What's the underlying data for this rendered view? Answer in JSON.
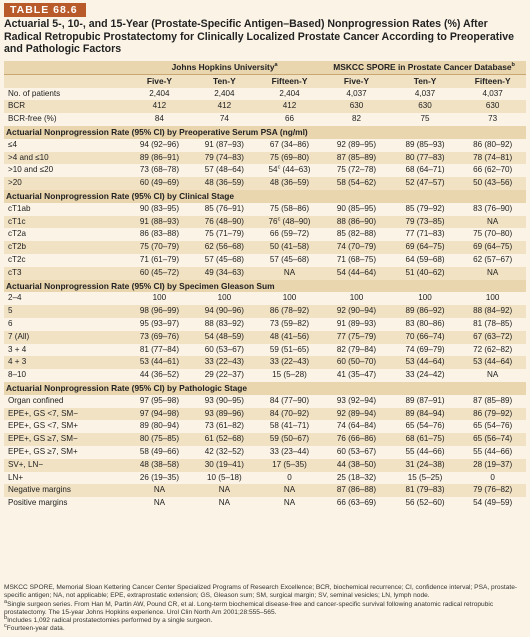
{
  "label": "TABLE 68.6",
  "title": "Actuarial 5-, 10-, and 15-Year (Prostate-Specific Antigen–Based) Nonprogression Rates (%) After Radical Retropubic Prostatectomy for Clinically Localized Prostate Cancer According to Preoperative and Pathologic Factors",
  "groups": [
    "Johns Hopkins University",
    "MSKCC SPORE in Prostate Cancer Database"
  ],
  "group_marks": [
    "a",
    "b"
  ],
  "subheaders": [
    "Five-Y",
    "Ten-Y",
    "Fifteen-Y",
    "Five-Y",
    "Ten-Y",
    "Fifteen-Y"
  ],
  "summary_rows": [
    {
      "label": "No. of patients",
      "values": [
        "2,404",
        "2,404",
        "2,404",
        "4,037",
        "4,037",
        "4,037"
      ]
    },
    {
      "label": "BCR",
      "values": [
        "412",
        "412",
        "412",
        "630",
        "630",
        "630"
      ]
    },
    {
      "label": "BCR-free (%)",
      "values": [
        "84",
        "74",
        "66",
        "82",
        "75",
        "73"
      ]
    }
  ],
  "sections": [
    {
      "title": "Actuarial Nonprogression Rate (95% CI) by Preoperative Serum PSA (ng/ml)",
      "rows": [
        {
          "label": "≤4",
          "values": [
            "94 (92–96)",
            "91 (87–93)",
            "67 (34–86)",
            "92 (89–95)",
            "89 (85–93)",
            "86 (80–92)"
          ]
        },
        {
          "label": ">4 and ≤10",
          "values": [
            "89 (86–91)",
            "79 (74–83)",
            "75 (69–80)",
            "87 (85–89)",
            "80 (77–83)",
            "78 (74–81)"
          ]
        },
        {
          "label": ">10 and ≤20",
          "values": [
            "73 (68–78)",
            "57 (48–64)",
            "54 (44–63)",
            "75 (72–78)",
            "68 (64–71)",
            "66 (62–70)"
          ],
          "marks": {
            "2": "c"
          }
        },
        {
          "label": ">20",
          "values": [
            "60 (49–69)",
            "48 (36–59)",
            "48 (36–59)",
            "58 (54–62)",
            "52 (47–57)",
            "50 (43–56)"
          ]
        }
      ]
    },
    {
      "title": "Actuarial Nonprogression Rate (95% CI) by Clinical Stage",
      "rows": [
        {
          "label": "cT1ab",
          "values": [
            "90 (83–95)",
            "85 (76–91)",
            "75 (58–86)",
            "90 (85–95)",
            "85 (79–92)",
            "83 (76–90)"
          ]
        },
        {
          "label": "cT1c",
          "values": [
            "91 (88–93)",
            "76 (48–90)",
            "76 (48–90)",
            "88 (86–90)",
            "79 (73–85)",
            "NA"
          ],
          "marks": {
            "2": "c"
          }
        },
        {
          "label": "cT2a",
          "values": [
            "86 (83–88)",
            "75 (71–79)",
            "66 (59–72)",
            "85 (82–88)",
            "77 (71–83)",
            "75 (70–80)"
          ]
        },
        {
          "label": "cT2b",
          "values": [
            "75 (70–79)",
            "62 (56–68)",
            "50 (41–58)",
            "74 (70–79)",
            "69 (64–75)",
            "69 (64–75)"
          ]
        },
        {
          "label": "cT2c",
          "values": [
            "71 (61–79)",
            "57 (45–68)",
            "57 (45–68)",
            "71 (68–75)",
            "64 (59–68)",
            "62 (57–67)"
          ]
        },
        {
          "label": "cT3",
          "values": [
            "60 (45–72)",
            "49 (34–63)",
            "NA",
            "54 (44–64)",
            "51 (40–62)",
            "NA"
          ]
        }
      ]
    },
    {
      "title": "Actuarial Nonprogression Rate (95% CI) by Specimen Gleason Sum",
      "rows": [
        {
          "label": "2–4",
          "values": [
            "100",
            "100",
            "100",
            "100",
            "100",
            "100"
          ]
        },
        {
          "label": "5",
          "values": [
            "98 (96–99)",
            "94 (90–96)",
            "86 (78–92)",
            "92 (90–94)",
            "89 (86–92)",
            "88 (84–92)"
          ]
        },
        {
          "label": "6",
          "values": [
            "95 (93–97)",
            "88 (83–92)",
            "73 (59–82)",
            "91 (89–93)",
            "83 (80–86)",
            "81 (78–85)"
          ]
        },
        {
          "label": "7 (All)",
          "values": [
            "73 (69–76)",
            "54 (48–59)",
            "48 (41–56)",
            "77 (75–79)",
            "70 (66–74)",
            "67 (63–72)"
          ]
        },
        {
          "label": "3 + 4",
          "values": [
            "81 (77–84)",
            "60 (53–67)",
            "59 (51–65)",
            "82 (79–84)",
            "74 (69–79)",
            "72 (62–82)"
          ]
        },
        {
          "label": "4 + 3",
          "values": [
            "53 (44–61)",
            "33 (22–43)",
            "33 (22–43)",
            "60 (50–70)",
            "53 (44–64)",
            "53 (44–64)"
          ]
        },
        {
          "label": "8–10",
          "values": [
            "44 (36–52)",
            "29 (22–37)",
            "15 (5–28)",
            "41 (35–47)",
            "33 (24–42)",
            "NA"
          ]
        }
      ]
    },
    {
      "title": "Actuarial Nonprogression Rate (95% CI) by Pathologic Stage",
      "rows": [
        {
          "label": "Organ confined",
          "values": [
            "97 (95–98)",
            "93 (90–95)",
            "84 (77–90)",
            "93 (92–94)",
            "89 (87–91)",
            "87 (85–89)"
          ]
        },
        {
          "label": "EPE+, GS <7, SM−",
          "values": [
            "97 (94–98)",
            "93 (89–96)",
            "84 (70–92)",
            "92 (89–94)",
            "89 (84–94)",
            "86 (79–92)"
          ]
        },
        {
          "label": "EPE+, GS <7, SM+",
          "values": [
            "89 (80–94)",
            "73 (61–82)",
            "58 (41–71)",
            "74 (64–84)",
            "65 (54–76)",
            "65 (54–76)"
          ]
        },
        {
          "label": "EPE+, GS ≥7, SM−",
          "values": [
            "80 (75–85)",
            "61 (52–68)",
            "59 (50–67)",
            "76 (66–86)",
            "68 (61–75)",
            "65 (56–74)"
          ]
        },
        {
          "label": "EPE+, GS ≥7, SM+",
          "values": [
            "58 (49–66)",
            "42 (32–52)",
            "33 (23–44)",
            "60 (53–67)",
            "55 (44–66)",
            "55 (44–66)"
          ]
        },
        {
          "label": "SV+, LN−",
          "values": [
            "48 (38–58)",
            "30 (19–41)",
            "17 (5–35)",
            "44 (38–50)",
            "31 (24–38)",
            "28 (19–37)"
          ]
        },
        {
          "label": "LN+",
          "values": [
            "26 (19–35)",
            "10 (5–18)",
            "0",
            "25 (18–32)",
            "15 (5–25)",
            "0"
          ]
        },
        {
          "label": "Negative margins",
          "values": [
            "NA",
            "NA",
            "NA",
            "87 (86–88)",
            "81 (79–83)",
            "79 (76–82)"
          ]
        },
        {
          "label": "Positive margins",
          "values": [
            "NA",
            "NA",
            "NA",
            "66 (63–69)",
            "56 (52–60)",
            "54 (49–59)"
          ]
        }
      ]
    }
  ],
  "footnotes": [
    "MSKCC SPORE, Memorial Sloan Kettering Cancer Center Specialized Programs of Research Excellence; BCR, biochemical recurrence; CI, confidence interval; PSA, prostate-specific antigen; NA, not applicable; EPE, extraprostatic extension; GS, Gleason sum; SM, surgical margin; SV, seminal vesicles; LN, lymph node.",
    "Single surgeon series. From Han M, Partin AW, Pound CR, et al. Long-term biochemical disease-free and cancer-specific survival following anatomic radical retropubic prostatectomy. The 15-year Johns Hopkins experience. Urol Clin North Am 2001;28:555–565.",
    "Includes 1,092 radical prostatectomies performed by a single surgeon.",
    "Fourteen-year data."
  ],
  "footnote_marks": [
    "",
    "a",
    "b",
    "c"
  ],
  "colors": {
    "label_bg": "#b85a2a",
    "header_bg": "#e9d5ae",
    "band_bg": "#f1e2c4",
    "page_bg": "#fbf4e6"
  }
}
